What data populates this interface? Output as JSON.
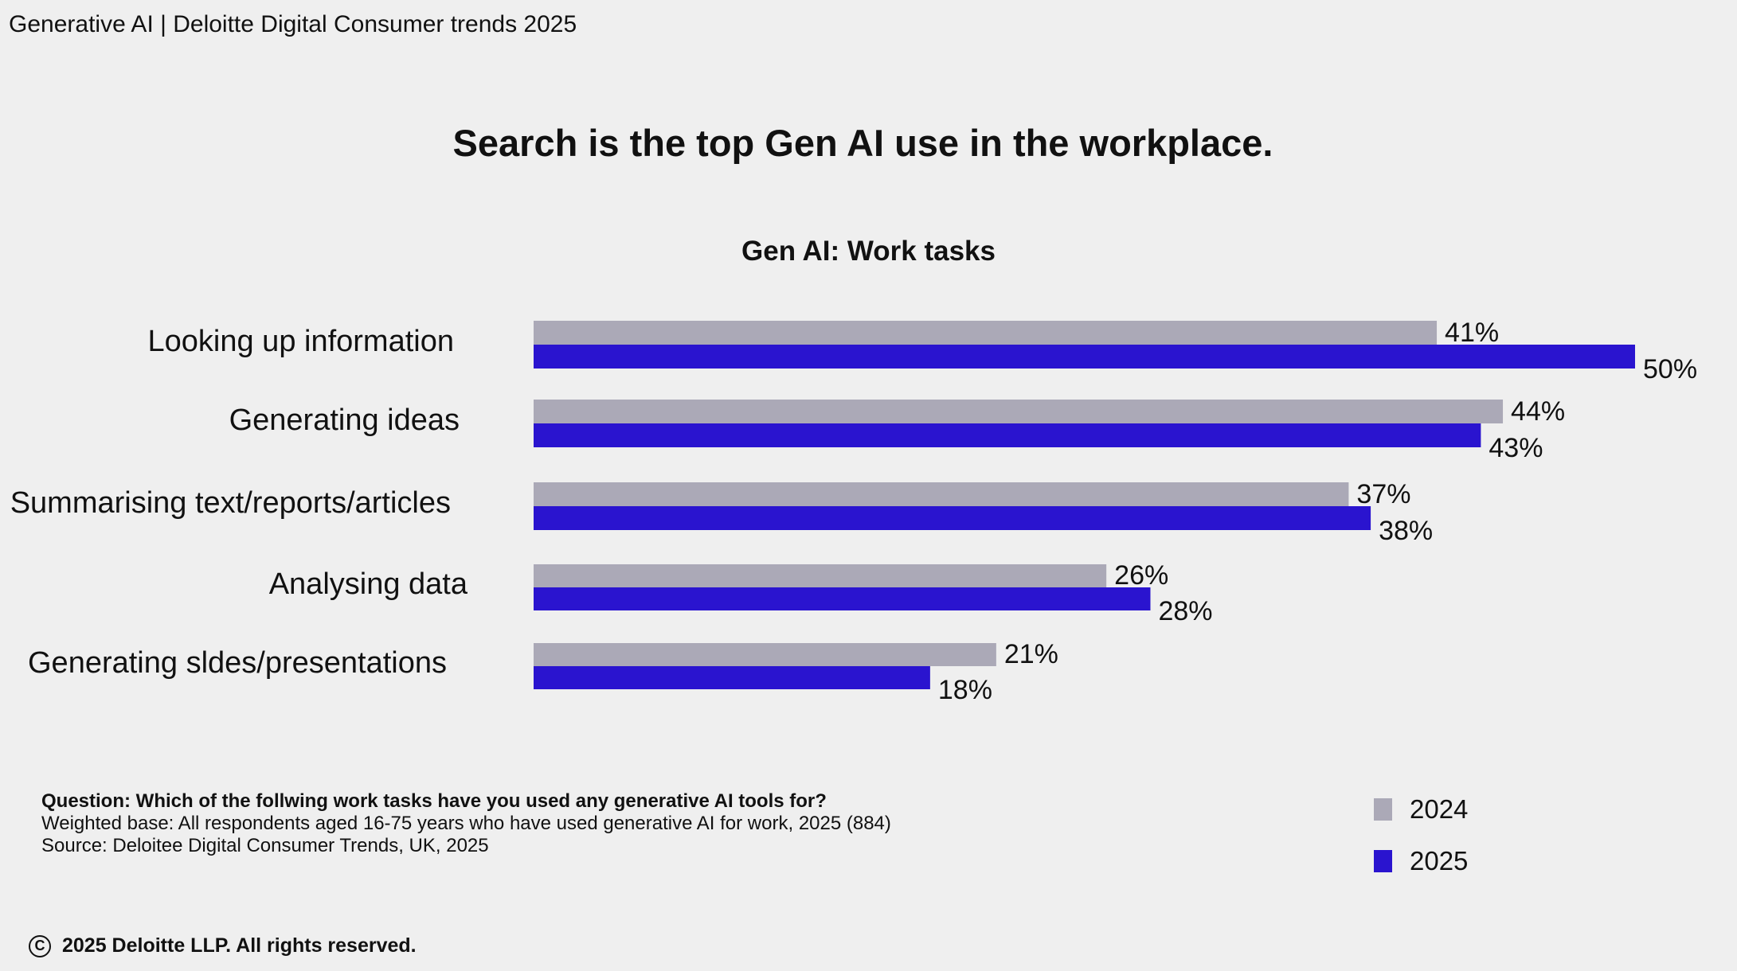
{
  "header": {
    "text": "Generative AI | Deloitte Digital Consumer trends 2025"
  },
  "title": "Search is the top Gen AI use in the workplace.",
  "chart_data": {
    "type": "bar",
    "orientation": "horizontal",
    "title": "Gen AI: Work tasks",
    "categories": [
      "Looking up information",
      "Generating ideas",
      "Summarising text/reports/articles",
      "Analysing data",
      "Generating sldes/presentations"
    ],
    "series": [
      {
        "name": "2024",
        "color": "#aba9b7",
        "values": [
          41,
          44,
          37,
          26,
          21
        ]
      },
      {
        "name": "2025",
        "color": "#2a14cf",
        "values": [
          50,
          43,
          38,
          28,
          18
        ]
      }
    ],
    "value_suffix": "%",
    "xlim": [
      0,
      50
    ],
    "grid": false,
    "legend_position": "bottom-right"
  },
  "notes": {
    "question": "Question: Which of the follwing work tasks have you used any generative AI tools for?",
    "base": "Weighted base: All respondents aged 16-75 years who have used generative AI for work, 2025 (884)",
    "source": "Source: Deloitee Digital Consumer Trends, UK, 2025"
  },
  "legend": {
    "items": [
      {
        "label": "2024",
        "color": "#aba9b7"
      },
      {
        "label": "2025",
        "color": "#2a14cf"
      }
    ]
  },
  "footer": {
    "icon": "copyright-icon",
    "text": "2025 Deloitte LLP. All rights reserved."
  }
}
